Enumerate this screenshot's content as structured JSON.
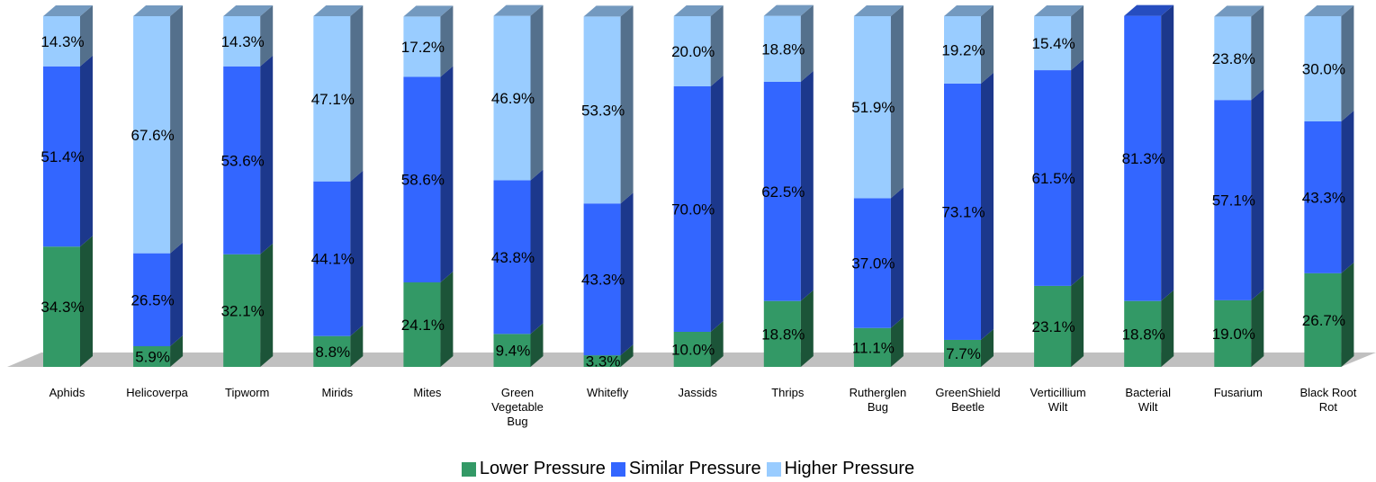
{
  "chart_data": {
    "type": "bar",
    "stacked": "percent",
    "three_d": true,
    "title": "",
    "xlabel": "",
    "ylabel": "",
    "ylim": [
      0,
      100
    ],
    "grid": false,
    "legend_position": "bottom",
    "categories": [
      "Aphids",
      "Helicoverpa",
      "Tipworm",
      "Mirids",
      "Mites",
      "Green Vegetable Bug",
      "Whitefly",
      "Jassids",
      "Thrips",
      "Rutherglen Bug",
      "GreenShield Beetle",
      "Verticillium Wilt",
      "Bacterial Wilt",
      "Fusarium",
      "Black Root Rot"
    ],
    "series": [
      {
        "name": "Lower Pressure",
        "color": "#339966",
        "values": [
          34.3,
          5.9,
          32.1,
          8.8,
          24.1,
          9.4,
          3.3,
          10.0,
          18.8,
          11.1,
          7.7,
          23.1,
          18.8,
          19.0,
          26.7
        ],
        "labels": [
          "34.3%",
          "5.9%",
          "32.1%",
          "8.8%",
          "24.1%",
          "9.4%",
          "3.3%",
          "10.0%",
          "18.8%",
          "11.1%",
          "7.7%",
          "23.1%",
          "18.8%",
          "19.0%",
          "26.7%"
        ]
      },
      {
        "name": "Similar Pressure",
        "color": "#3366ff",
        "values": [
          51.4,
          26.5,
          53.6,
          44.1,
          58.6,
          43.8,
          43.3,
          70.0,
          62.5,
          37.0,
          73.1,
          61.5,
          81.3,
          57.1,
          43.3
        ],
        "labels": [
          "51.4%",
          "26.5%",
          "53.6%",
          "44.1%",
          "58.6%",
          "43.8%",
          "43.3%",
          "70.0%",
          "62.5%",
          "37.0%",
          "73.1%",
          "61.5%",
          "81.3%",
          "57.1%",
          "43.3%"
        ]
      },
      {
        "name": "Higher Pressure",
        "color": "#99ccff",
        "values": [
          14.3,
          67.6,
          14.3,
          47.1,
          17.2,
          46.9,
          53.3,
          20.0,
          18.8,
          51.9,
          19.2,
          15.4,
          0,
          23.8,
          30.0
        ],
        "labels": [
          "14.3%",
          "67.6%",
          "14.3%",
          "47.1%",
          "17.2%",
          "46.9%",
          "53.3%",
          "20.0%",
          "18.8%",
          "51.9%",
          "19.2%",
          "15.4%",
          "",
          "23.8%",
          "30.0%"
        ]
      }
    ]
  },
  "legend": {
    "items": [
      {
        "label": "Lower Pressure",
        "color": "#339966"
      },
      {
        "label": "Similar Pressure",
        "color": "#3366ff"
      },
      {
        "label": "Higher Pressure",
        "color": "#99ccff"
      }
    ]
  }
}
